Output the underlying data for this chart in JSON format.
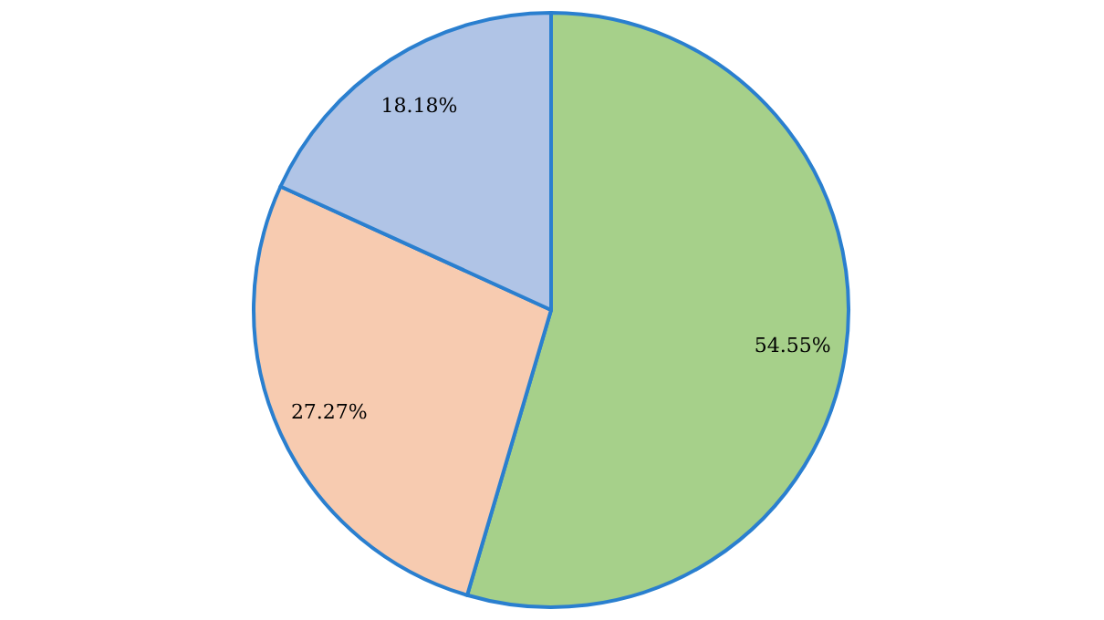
{
  "chart_data": {
    "type": "pie",
    "categories": [
      null,
      null,
      null
    ],
    "values": [
      54.55,
      27.27,
      18.18
    ],
    "colors": [
      "#a6d08a",
      "#f7cbb0",
      "#b0c4e6"
    ],
    "value_labels": [
      "54.55%",
      "27.27%",
      "18.18%"
    ]
  }
}
